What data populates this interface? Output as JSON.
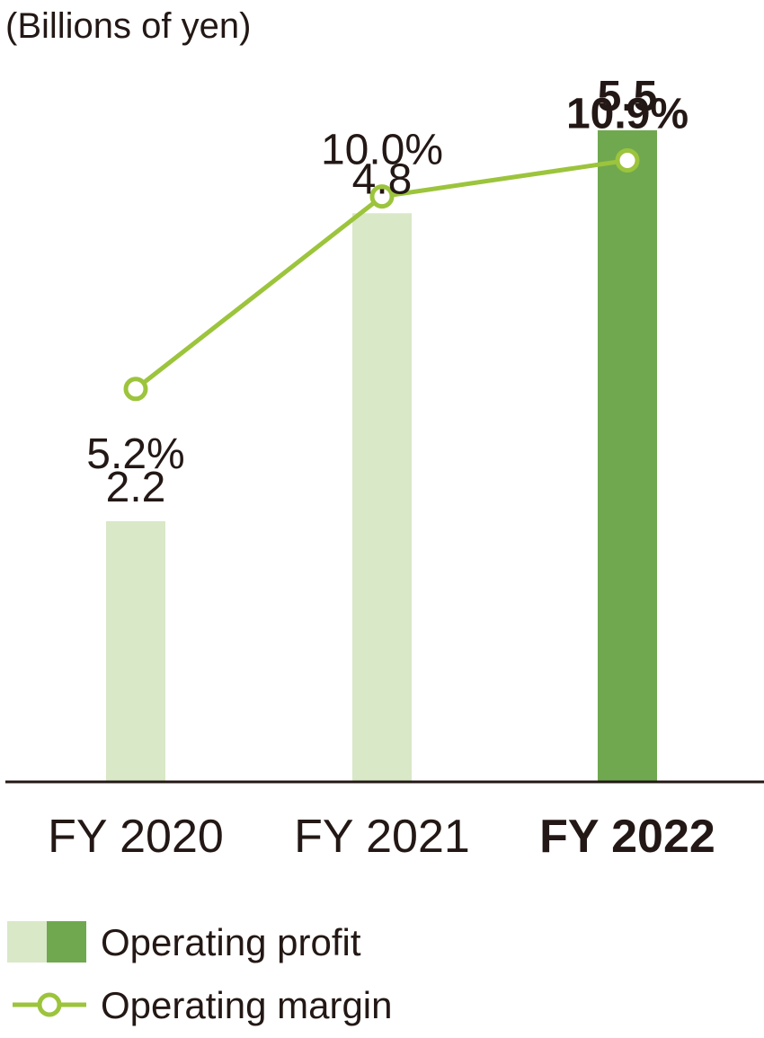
{
  "chart_data": {
    "type": "bar",
    "unit_label": "(Billions of yen)",
    "categories": [
      "FY 2020",
      "FY 2021",
      "FY 2022"
    ],
    "highlight_category": "FY 2022",
    "series": [
      {
        "name": "Operating profit",
        "kind": "bar",
        "values": [
          2.2,
          4.8,
          5.5
        ],
        "labels": [
          "2.2",
          "4.8",
          "5.5"
        ],
        "color_light": "#d9e8c7",
        "color_dark": "#6fa84f"
      },
      {
        "name": "Operating margin",
        "kind": "line",
        "unit": "%",
        "values": [
          5.2,
          10.0,
          10.9
        ],
        "labels": [
          "5.2%",
          "10.0%",
          "10.9%"
        ],
        "color": "#9cc43c"
      }
    ],
    "ylim_profit": [
      0,
      6.6
    ],
    "ylim_margin": [
      -4.6,
      14.9
    ],
    "legend": {
      "position": "bottom-left",
      "entries": [
        "Operating profit",
        "Operating margin"
      ]
    }
  }
}
